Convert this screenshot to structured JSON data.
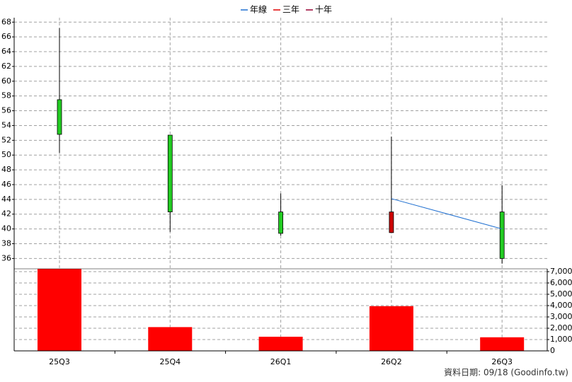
{
  "chart_data": [
    {
      "type": "candlestick",
      "categories": [
        "25Q3",
        "25Q4",
        "26Q1",
        "26Q2",
        "26Q3"
      ],
      "open": [
        57.5,
        52.7,
        42.3,
        39.5,
        42.3
      ],
      "high": [
        67.2,
        52.7,
        44.8,
        52.5,
        45.9
      ],
      "low": [
        50.3,
        39.6,
        39.1,
        39.5,
        35.3
      ],
      "close": [
        52.8,
        42.3,
        39.4,
        42.3,
        36.0
      ],
      "up_color": "#cc0000",
      "down_color": "#22cc22",
      "series": [
        {
          "name": "年線",
          "color": "#1f6fd0",
          "values": [
            null,
            null,
            null,
            44.1,
            40.0
          ]
        },
        {
          "name": "三年",
          "color": "#e00000",
          "values": [
            null,
            null,
            null,
            null,
            null
          ]
        },
        {
          "name": "十年",
          "color": "#990033",
          "values": [
            null,
            null,
            null,
            null,
            null
          ]
        }
      ],
      "ylim": [
        34.6,
        68.6
      ],
      "yticks": [
        36,
        38,
        40,
        42,
        44,
        46,
        48,
        50,
        52,
        54,
        56,
        58,
        60,
        62,
        64,
        66,
        68
      ],
      "grid": true,
      "legend": "top"
    },
    {
      "type": "bar",
      "values": [
        7300,
        2100,
        1250,
        3950,
        1200
      ],
      "color": "#ff0000",
      "ylim": [
        0,
        7250
      ],
      "yticks": [
        0,
        {
          "value": 1000,
          "label": "1,000"
        },
        {
          "value": 2000,
          "label": "2,000"
        },
        {
          "value": 3000,
          "label": "3,000"
        },
        {
          "value": 4000,
          "label": "4,000"
        },
        {
          "value": 5000,
          "label": "5,000"
        },
        {
          "value": 6000,
          "label": "6,000"
        },
        {
          "value": 7000,
          "label": "7,000"
        }
      ],
      "grid": true
    }
  ],
  "footer": "資料日期: 09/18  (Goodinfo.tw)"
}
